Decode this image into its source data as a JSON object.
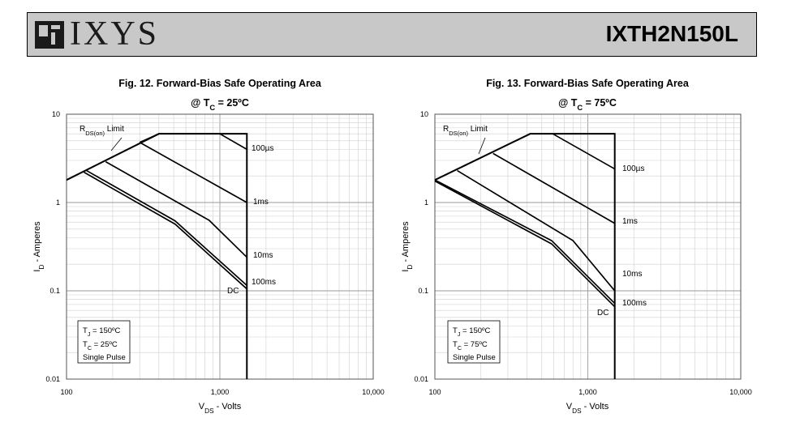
{
  "header": {
    "logo_text": "IXYS",
    "part_number": "IXTH2N150L"
  },
  "chart_data": [
    {
      "type": "line",
      "title": "Fig. 12. Forward-Bias Safe Operating Area",
      "subtitle": {
        "prefix": "@ T",
        "sub": "C",
        "suffix": " = 25ºC"
      },
      "xlabel": {
        "main": "V",
        "sub": "DS",
        "suffix": " - Volts"
      },
      "ylabel": {
        "main": "I",
        "sub": "D",
        "suffix": " - Amperes"
      },
      "xscale": "log",
      "yscale": "log",
      "xlim": [
        100,
        10000
      ],
      "ylim": [
        0.01,
        10
      ],
      "x_tick_labels": [
        "100",
        "1,000",
        "10,000"
      ],
      "y_tick_labels": [
        "0.01",
        "0.1",
        "1",
        "10"
      ],
      "grid": true,
      "rds_label": {
        "main": "R",
        "sub": "DS(on)",
        "suffix": " Limit"
      },
      "envelope": [
        [
          100,
          1.8
        ],
        [
          400,
          6
        ],
        [
          1500,
          6
        ],
        [
          1500,
          0.01
        ]
      ],
      "series": [
        {
          "name": "100µs",
          "values": [
            [
              300,
              4.8
            ],
            [
              400,
              6
            ],
            [
              1000,
              6
            ],
            [
              1500,
              4.0
            ]
          ]
        },
        {
          "name": "1ms",
          "values": [
            [
              300,
              4.8
            ],
            [
              1500,
              1.0
            ]
          ]
        },
        {
          "name": "10ms",
          "values": [
            [
              180,
              2.9
            ],
            [
              850,
              0.63
            ],
            [
              1500,
              0.24
            ]
          ]
        },
        {
          "name": "100ms",
          "values": [
            [
              135,
              2.3
            ],
            [
              510,
              0.62
            ],
            [
              1500,
              0.115
            ]
          ]
        },
        {
          "name": "DC",
          "values": [
            [
              130,
              2.2
            ],
            [
              510,
              0.57
            ],
            [
              1500,
              0.105
            ]
          ]
        }
      ],
      "annotation": [
        "T",
        "J",
        " = 150ºC",
        "T",
        "C",
        " = 25ºC",
        "Single Pulse"
      ]
    },
    {
      "type": "line",
      "title": "Fig. 13. Forward-Bias Safe Operating Area",
      "subtitle": {
        "prefix": "@ T",
        "sub": "C",
        "suffix": " = 75ºC"
      },
      "xlabel": {
        "main": "V",
        "sub": "DS",
        "suffix": " - Volts"
      },
      "ylabel": {
        "main": "I",
        "sub": "D",
        "suffix": " - Amperes"
      },
      "xscale": "log",
      "yscale": "log",
      "xlim": [
        100,
        10000
      ],
      "ylim": [
        0.01,
        10
      ],
      "x_tick_labels": [
        "100",
        "1,000",
        "10,000"
      ],
      "y_tick_labels": [
        "0.01",
        "0.1",
        "1",
        "10"
      ],
      "grid": true,
      "rds_label": {
        "main": "R",
        "sub": "DS(on)",
        "suffix": " Limit"
      },
      "envelope": [
        [
          100,
          1.8
        ],
        [
          420,
          6
        ],
        [
          1500,
          6
        ],
        [
          1500,
          0.01
        ]
      ],
      "series": [
        {
          "name": "100µs",
          "values": [
            [
              590,
              6
            ],
            [
              1500,
              2.4
            ]
          ]
        },
        {
          "name": "1ms",
          "values": [
            [
              240,
              3.6
            ],
            [
              1500,
              0.58
            ]
          ]
        },
        {
          "name": "10ms",
          "values": [
            [
              140,
              2.3
            ],
            [
              800,
              0.37
            ],
            [
              1500,
              0.1
            ]
          ]
        },
        {
          "name": "100ms",
          "values": [
            [
              100,
              1.8
            ],
            [
              580,
              0.37
            ],
            [
              1500,
              0.072
            ]
          ]
        },
        {
          "name": "DC",
          "values": [
            [
              100,
              1.75
            ],
            [
              580,
              0.34
            ],
            [
              1500,
              0.066
            ]
          ]
        }
      ],
      "annotation": [
        "T",
        "J",
        " = 150ºC",
        "T",
        "C",
        " = 75ºC",
        "Single Pulse"
      ]
    }
  ]
}
